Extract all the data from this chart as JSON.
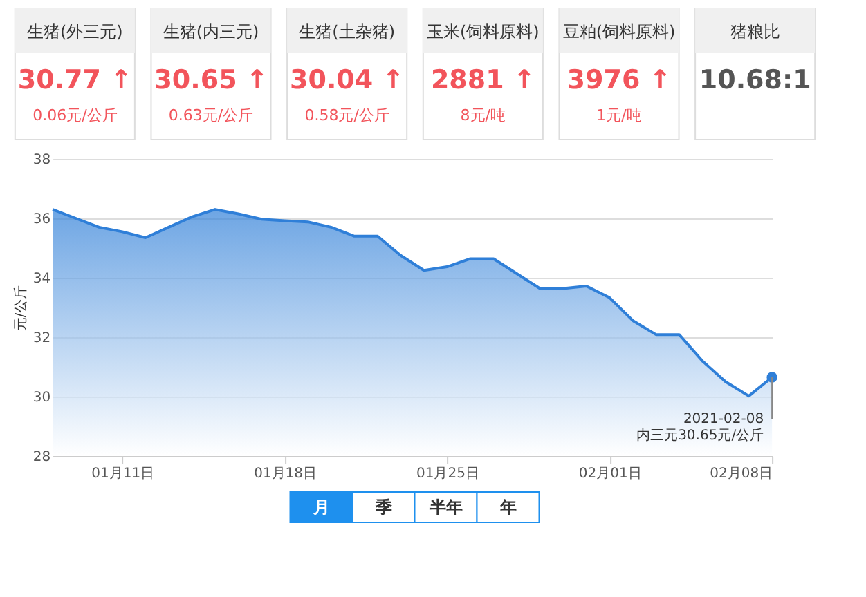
{
  "chart_data": {
    "type": "area",
    "ylabel": "元/公斤",
    "x": [
      "2021-01-08",
      "2021-01-09",
      "2021-01-10",
      "2021-01-11",
      "2021-01-12",
      "2021-01-13",
      "2021-01-14",
      "2021-01-15",
      "2021-01-16",
      "2021-01-17",
      "2021-01-18",
      "2021-01-19",
      "2021-01-20",
      "2021-01-21",
      "2021-01-22",
      "2021-01-23",
      "2021-01-24",
      "2021-01-25",
      "2021-01-26",
      "2021-01-27",
      "2021-01-28",
      "2021-01-29",
      "2021-01-30",
      "2021-01-31",
      "2021-02-01",
      "2021-02-02",
      "2021-02-03",
      "2021-02-04",
      "2021-02-05",
      "2021-02-06",
      "2021-02-07",
      "2021-02-08"
    ],
    "series": [
      {
        "color": "#2f7fd8",
        "values": [
          36.3,
          36.0,
          35.7,
          35.55,
          35.35,
          35.7,
          36.05,
          36.3,
          36.15,
          35.97,
          35.92,
          35.88,
          35.7,
          35.4,
          35.4,
          34.75,
          34.25,
          34.37,
          34.64,
          34.64,
          34.14,
          33.64,
          33.64,
          33.72,
          33.33,
          32.56,
          32.09,
          32.09,
          31.2,
          30.5,
          30.02,
          30.65
        ]
      },
      {
        "type": "scatter",
        "color": "#2f7fd8",
        "x": [
          "2021-02-08"
        ],
        "values": [
          30.65
        ]
      }
    ],
    "xlim": [
      "2021-01-08",
      "2021-02-08"
    ],
    "xticks": [
      {
        "value": "2021-01-11",
        "label": "01月11日"
      },
      {
        "value": "2021-01-18",
        "label": "01月18日"
      },
      {
        "value": "2021-01-25",
        "label": "01月25日"
      },
      {
        "value": "2021-02-01",
        "label": "02月01日"
      },
      {
        "value": "2021-02-08",
        "label": "02月08日"
      }
    ],
    "ylim": [
      28,
      38
    ],
    "yticks": [
      28,
      30,
      32,
      34,
      36,
      38
    ],
    "grid": "y",
    "annotations": [
      "生猪(外三元)",
      "30.77 ↑",
      "0.06元/公斤",
      "生猪(内三元)",
      "30.65 ↑",
      "0.63元/公斤",
      "生猪(土杂猪)",
      "30.04 ↑",
      "0.58元/公斤",
      "玉米(饲料原料)",
      "2881 ↑",
      "8元/吨",
      "豆粕(饲料原料)",
      "3976 ↑",
      "1元/吨",
      "猪粮比",
      "10.68:1",
      {
        "text": "2021-02-08 内三元30.65元/公斤",
        "x": "2021-02-08",
        "y": 30.65
      },
      "月",
      "季",
      "半年",
      "年"
    ]
  }
}
